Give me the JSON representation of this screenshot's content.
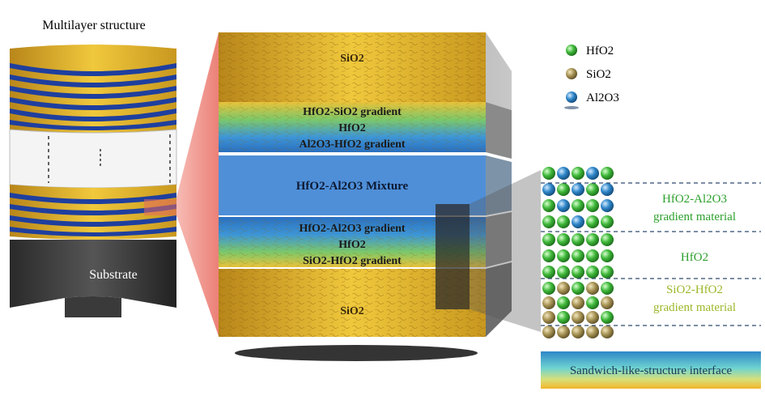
{
  "left_column": {
    "title": "Multilayer structure",
    "substrate_label": "Substrate"
  },
  "stack": {
    "top_layer": "SiO2",
    "gradient_top_1": "HfO2-SiO2 gradient",
    "gradient_top_2": "HfO2",
    "gradient_top_3": "Al2O3-HfO2 gradient",
    "middle_layer": "HfO2-Al2O3 Mixture",
    "gradient_bot_1": "HfO2-Al2O3 gradient",
    "gradient_bot_2": "HfO2",
    "gradient_bot_3": "SiO2-HfO2 gradient",
    "bottom_layer": "SiO2"
  },
  "legend": {
    "items": [
      {
        "label": "HfO2",
        "color": "#3fb83a"
      },
      {
        "label": "SiO2",
        "color": "#a89455"
      },
      {
        "label": "Al2O3",
        "color": "#2f86c9"
      }
    ]
  },
  "atom_panel": {
    "label_1": "HfO2-Al2O3",
    "label_1b": "gradient material",
    "label_2": "HfO2",
    "label_3": "SiO2-HfO2",
    "label_3b": "gradient material",
    "interface_label": "Sandwich-like-structure interface",
    "color_hfo2_label": "#2ca02c",
    "color_sio2_label": "#9bb82a"
  }
}
